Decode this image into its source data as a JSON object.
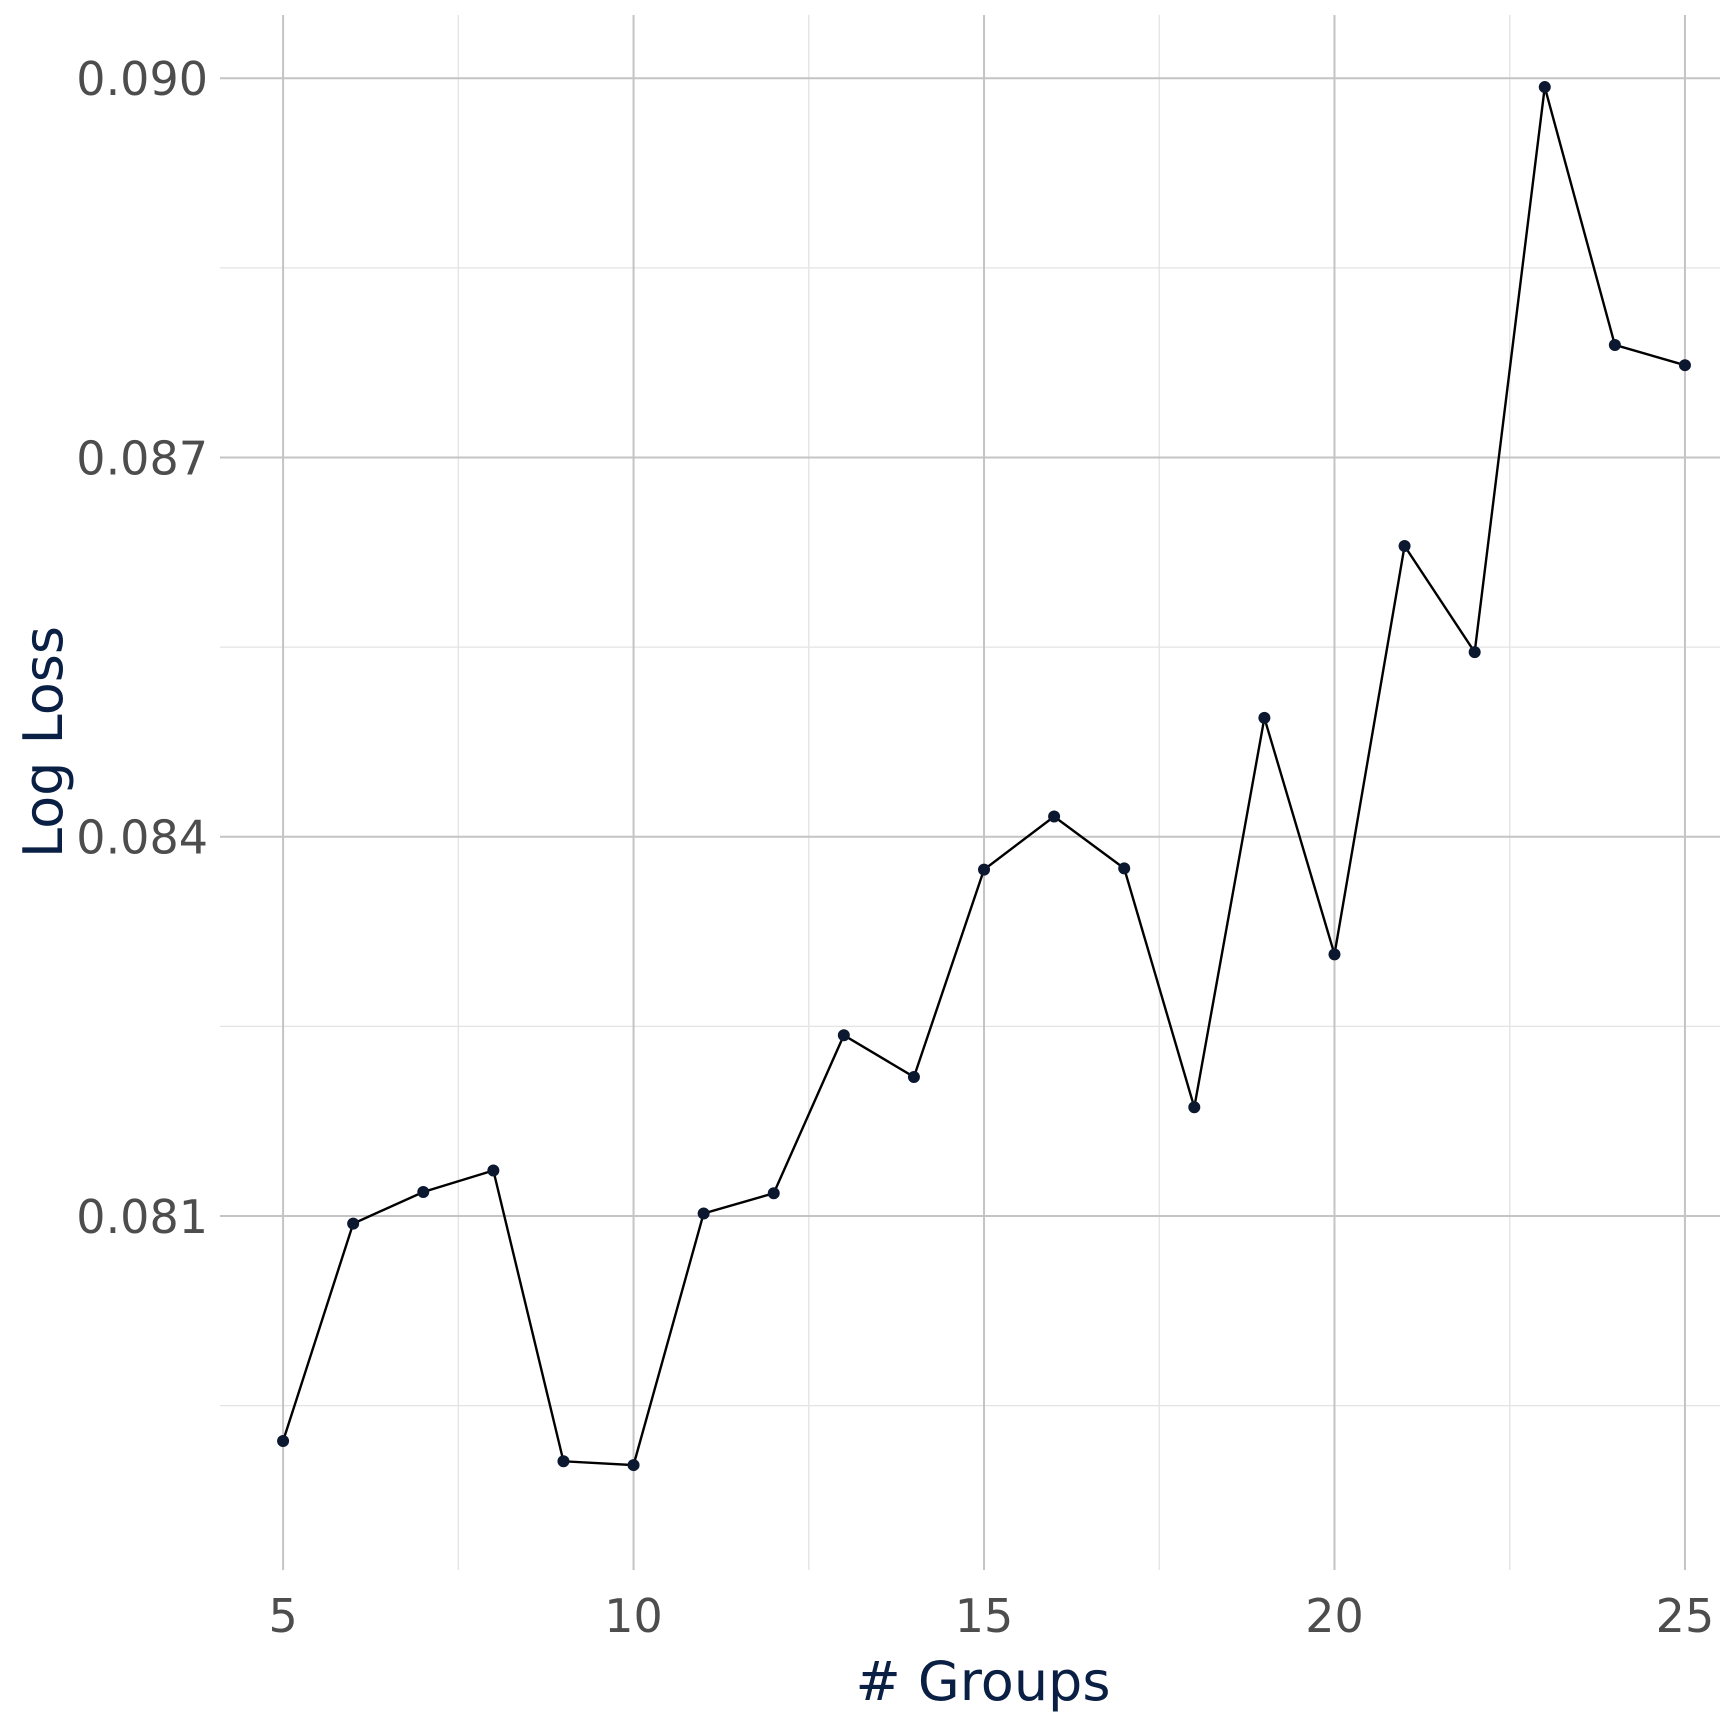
{
  "chart_data": {
    "type": "line",
    "xlabel": "# Groups",
    "ylabel": "Log Loss",
    "x": [
      5,
      6,
      7,
      8,
      9,
      10,
      11,
      12,
      13,
      14,
      15,
      16,
      17,
      18,
      19,
      20,
      21,
      22,
      23,
      24,
      25
    ],
    "series": [
      {
        "values": [
          0.07922,
          0.08094,
          0.08119,
          0.08136,
          0.07906,
          0.07903,
          0.08102,
          0.08118,
          0.08243,
          0.0821,
          0.08374,
          0.08416,
          0.08375,
          0.08186,
          0.08494,
          0.08307,
          0.0863,
          0.08546,
          0.08993,
          0.08789,
          0.08773
        ]
      }
    ],
    "xlim": [
      4.1,
      25.5
    ],
    "ylim": [
      0.0782,
      0.0905
    ],
    "x_ticks": [
      5,
      10,
      15,
      20,
      25
    ],
    "x_tick_labels": [
      "5",
      "10",
      "15",
      "20",
      "25"
    ],
    "y_ticks": [
      0.081,
      0.084,
      0.087,
      0.09
    ],
    "y_tick_labels": [
      "0.081",
      "0.084",
      "0.087",
      "0.090"
    ],
    "x_minor_ticks": [
      7.5,
      12.5,
      17.5,
      22.5
    ],
    "y_minor_ticks": [
      0.0795,
      0.0825,
      0.0855,
      0.0885
    ],
    "grid": true,
    "legend": "none",
    "colors": {
      "line": "#000000",
      "point": "#0c1830",
      "axis_title": "#0a1f44",
      "tick_label": "#4d4d4d"
    }
  }
}
